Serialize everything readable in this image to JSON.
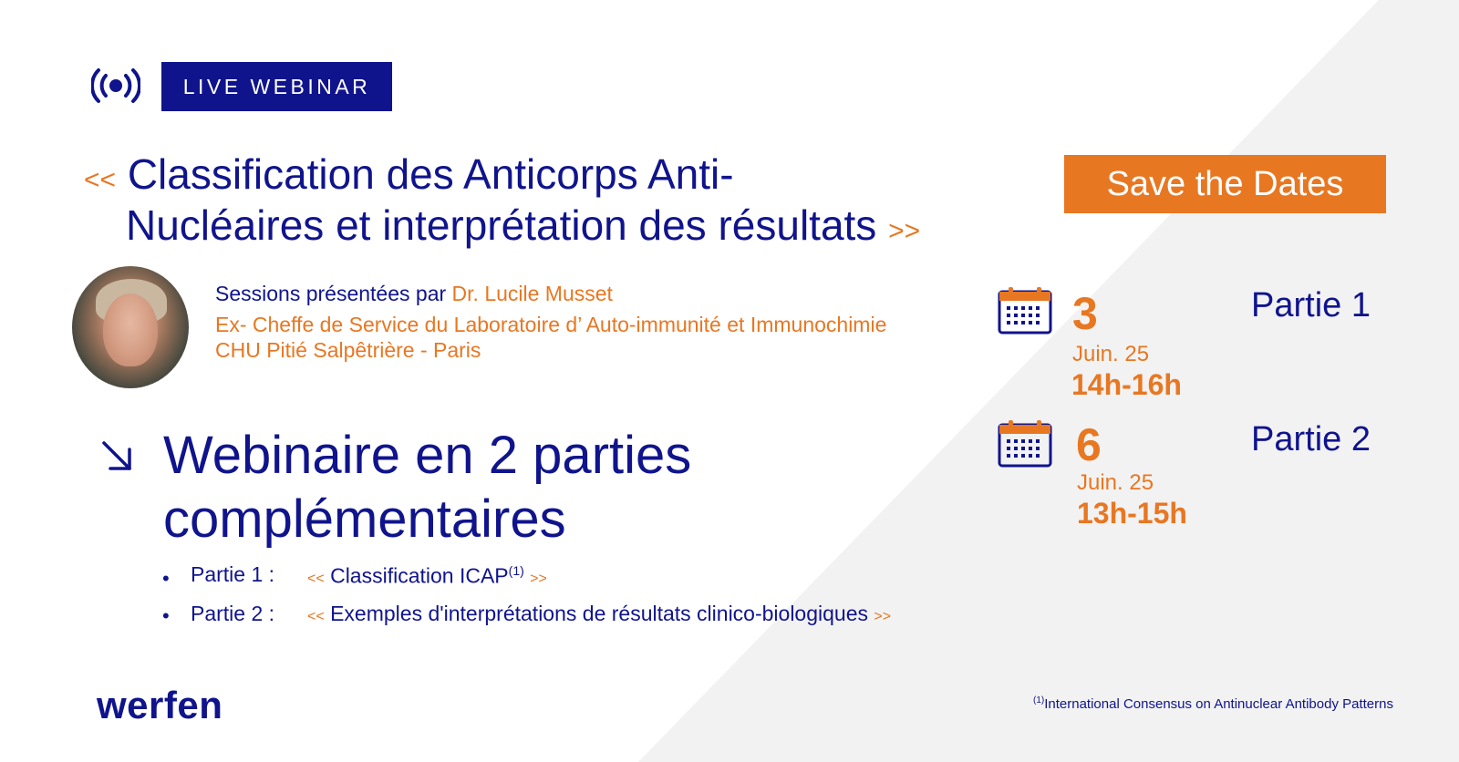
{
  "badge": {
    "label": "LIVE WEBINAR"
  },
  "title": {
    "open_quote": "<<",
    "line1": "Classification des Anticorps Anti-",
    "line2": "Nucléaires et interprétation des résultats",
    "close_quote": ">>"
  },
  "save_dates": {
    "label": "Save the Dates"
  },
  "speaker": {
    "intro": "Sessions présentées par",
    "name": "Dr. Lucile Musset",
    "role": "Ex- Cheffe de Service du Laboratoire d’ Auto-immunité et Immunochimie",
    "institution": "CHU Pitié Salpêtrière - Paris"
  },
  "webinar": {
    "line1": "Webinaire en 2 parties",
    "line2": "complémentaires",
    "parts": [
      {
        "label": "Partie 1 :",
        "open": "<<",
        "description": "Classification ICAP",
        "sup": "(1)",
        "close": ">>"
      },
      {
        "label": "Partie 2 :",
        "open": "<<",
        "description": "Exemples d'interprétations de résultats clinico-biologiques",
        "close": ">>"
      }
    ]
  },
  "dates": [
    {
      "day": "3",
      "month": "Juin. 25",
      "hours": "14h-16h",
      "part": "Partie 1"
    },
    {
      "day": "6",
      "month": "Juin. 25",
      "hours": "13h-15h",
      "part": "Partie 2"
    }
  ],
  "footer": {
    "logo": "werfen",
    "footnote_sup": "(1)",
    "footnote": "International Consensus on Antinuclear Antibody Patterns"
  },
  "colors": {
    "navy": "#10148c",
    "orange": "#e87722",
    "background_shape": "#f2f2f2"
  },
  "icons": [
    "live-broadcast-icon",
    "arrow-down-right-icon",
    "calendar-icon"
  ]
}
